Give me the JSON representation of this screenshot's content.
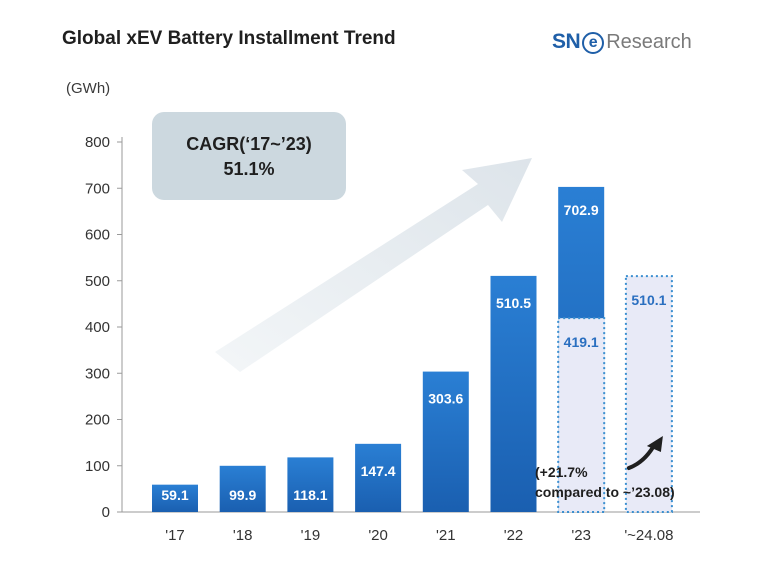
{
  "header": {
    "title": "Global xEV Battery Installment Trend",
    "logo_sn": "SN",
    "logo_e": "e",
    "logo_research": "Research"
  },
  "colors": {
    "bar_gradient_top": "#2a7fd4",
    "bar_gradient_bottom": "#1a5fb0",
    "dotted_fill": "#e8eaf7",
    "dotted_border": "#3a8fd0",
    "arrow": "#e2e8ee",
    "cagr_box": "#ccd8df"
  },
  "annotations": {
    "cagr_line1": "CAGR(‘17~’23)",
    "cagr_line2": "51.1%",
    "growth_note_line1": "(+21.7%",
    "growth_note_line2": "compared to ~’23.08)"
  },
  "chart_data": {
    "type": "bar",
    "title": "Global xEV Battery Installment Trend",
    "ylabel": "(GWh)",
    "xlabel": "",
    "ylim": [
      0,
      800
    ],
    "yticks": [
      0,
      100,
      200,
      300,
      400,
      500,
      600,
      700,
      800
    ],
    "grid": false,
    "categories": [
      "'17",
      "'18",
      "'19",
      "'20",
      "'21",
      "'22",
      "'23",
      "'~24.08"
    ],
    "series": [
      {
        "values": [
          59.1,
          99.9,
          118.1,
          147.4,
          303.6,
          510.5,
          702.9,
          null
        ]
      }
    ],
    "partial_period": {
      "categories": [
        "'23",
        "'~24.08"
      ],
      "values": [
        419.1,
        510.1
      ]
    }
  }
}
